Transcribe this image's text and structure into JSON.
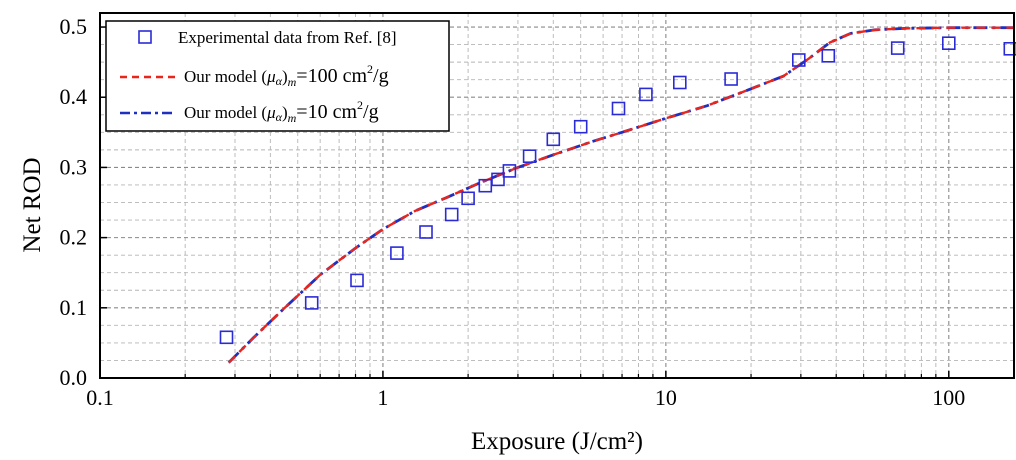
{
  "chart_data": {
    "type": "scatter",
    "xscale": "log",
    "xlim": [
      0.1,
      170
    ],
    "ylim": [
      0.0,
      0.52
    ],
    "grid": true,
    "legend_position": "top-left",
    "xlabel": "Exposure (J/cm²)",
    "ylabel": "Net ROD",
    "x_ticks": [
      {
        "value": 0.1,
        "label": "0.1"
      },
      {
        "value": 1,
        "label": "1"
      },
      {
        "value": 10,
        "label": "10"
      },
      {
        "value": 100,
        "label": "100"
      }
    ],
    "y_ticks": [
      {
        "value": 0.0,
        "label": "0.0"
      },
      {
        "value": 0.1,
        "label": "0.1"
      },
      {
        "value": 0.2,
        "label": "0.2"
      },
      {
        "value": 0.3,
        "label": "0.3"
      },
      {
        "value": 0.4,
        "label": "0.4"
      },
      {
        "value": 0.5,
        "label": "0.5"
      }
    ],
    "series": [
      {
        "name": "Experimental data from Ref. [8]",
        "kind": "scatter",
        "marker": "square-open",
        "color": "#2b2bd6",
        "x": [
          0.28,
          0.56,
          0.81,
          1.12,
          1.42,
          1.75,
          2.0,
          2.3,
          2.55,
          2.8,
          3.3,
          4.0,
          5.0,
          6.8,
          8.5,
          11.2,
          17.0,
          29.5,
          37.5,
          66.0,
          100.0,
          165.0
        ],
        "y": [
          0.058,
          0.107,
          0.139,
          0.178,
          0.208,
          0.233,
          0.256,
          0.274,
          0.283,
          0.295,
          0.316,
          0.34,
          0.358,
          0.384,
          0.404,
          0.421,
          0.426,
          0.453,
          0.459,
          0.47,
          0.477,
          0.469
        ]
      },
      {
        "name_parts": {
          "prefix": "Our model (",
          "mu": "μ",
          "alpha": "α",
          "m": "m",
          "value": "=100 cm",
          "sup": "2",
          "suffix": "/g"
        },
        "kind": "line",
        "style": "dashed",
        "color": "#e8261c",
        "x": [
          0.285,
          0.35,
          0.45,
          0.6,
          0.8,
          1.0,
          1.3,
          1.7,
          2.2,
          3.0,
          4.0,
          5.5,
          7.0,
          10.0,
          14.0,
          20.0,
          26.0,
          32.0,
          38.0,
          45.0,
          55.0,
          70.0,
          100.0,
          170.0
        ],
        "y": [
          0.022,
          0.058,
          0.1,
          0.147,
          0.185,
          0.212,
          0.238,
          0.258,
          0.278,
          0.3,
          0.318,
          0.337,
          0.35,
          0.37,
          0.388,
          0.412,
          0.43,
          0.455,
          0.478,
          0.491,
          0.496,
          0.498,
          0.499,
          0.499
        ]
      },
      {
        "name_parts": {
          "prefix": "Our model (",
          "mu": "μ",
          "alpha": "α",
          "m": "m",
          "value": "=10 cm",
          "sup": "2",
          "suffix": "/g"
        },
        "kind": "line",
        "style": "dash-dot",
        "color": "#1f2fc0",
        "x": [
          0.285,
          0.35,
          0.45,
          0.6,
          0.8,
          1.0,
          1.3,
          1.7,
          2.2,
          3.0,
          4.0,
          5.5,
          7.0,
          10.0,
          14.0,
          20.0,
          26.0,
          32.0,
          38.0,
          45.0,
          55.0,
          70.0,
          100.0,
          170.0
        ],
        "y": [
          0.022,
          0.058,
          0.1,
          0.147,
          0.185,
          0.212,
          0.238,
          0.258,
          0.278,
          0.3,
          0.318,
          0.337,
          0.35,
          0.37,
          0.388,
          0.412,
          0.43,
          0.455,
          0.478,
          0.491,
          0.496,
          0.498,
          0.499,
          0.499
        ]
      }
    ]
  }
}
